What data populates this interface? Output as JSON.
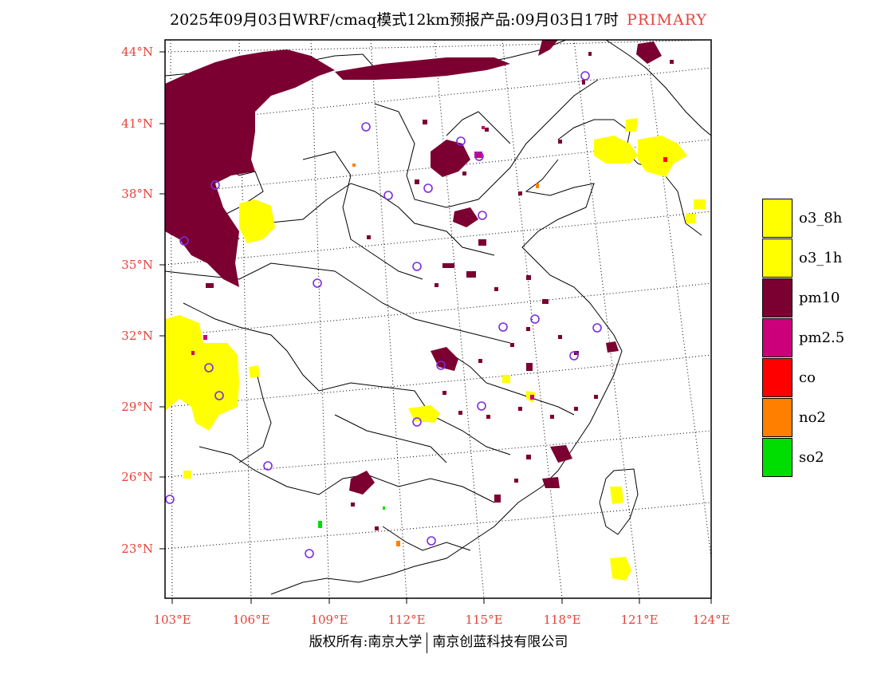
{
  "header": {
    "title": "2025年09月03日WRF/cmaq模式12km预报产品:09月03日17时",
    "field": "PRIMARY"
  },
  "axes": {
    "lat_labels": [
      "44°N",
      "41°N",
      "38°N",
      "35°N",
      "32°N",
      "29°N",
      "26°N",
      "23°N"
    ],
    "lon_labels": [
      "103°E",
      "106°E",
      "109°E",
      "112°E",
      "115°E",
      "118°E",
      "121°E",
      "124°E"
    ]
  },
  "legend": [
    {
      "label": "o3_8h",
      "color": "#ffff00"
    },
    {
      "label": "o3_1h",
      "color": "#ffff00"
    },
    {
      "label": "pm10",
      "color": "#7b0031"
    },
    {
      "label": "pm2.5",
      "color": "#cc007a"
    },
    {
      "label": "co",
      "color": "#ff0000"
    },
    {
      "label": "no2",
      "color": "#ff7f00"
    },
    {
      "label": "so2",
      "color": "#00dd00"
    }
  ],
  "footer": {
    "left": "版权所有:南京大学",
    "right": "南京创蓝科技有限公司"
  }
}
